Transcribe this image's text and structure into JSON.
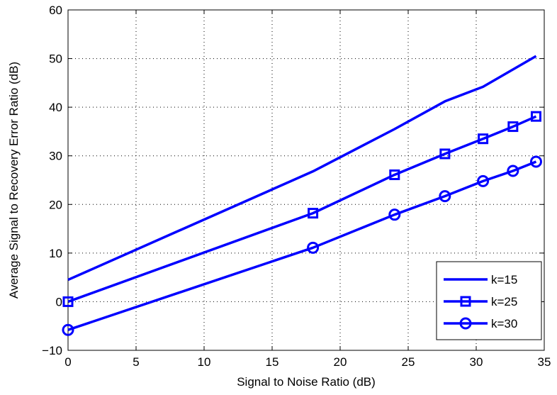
{
  "chart_data": {
    "type": "line",
    "xlabel": "Signal to Noise Ratio (dB)",
    "ylabel": "Average Signal to Recovery Error Ratio (dB)",
    "xlim": [
      0,
      35
    ],
    "ylim": [
      -10,
      60
    ],
    "xticks": [
      0,
      5,
      10,
      15,
      20,
      25,
      30,
      35
    ],
    "yticks": [
      -10,
      0,
      10,
      20,
      30,
      40,
      50,
      60
    ],
    "grid": true,
    "legend_position": "bottom-right",
    "series": [
      {
        "name": "k=15",
        "marker": "none",
        "color": "#0000ff",
        "x": [
          0,
          18,
          24,
          27.7,
          30.5,
          34.4
        ],
        "y": [
          4.5,
          26.8,
          35.5,
          41.2,
          44.2,
          50.5
        ]
      },
      {
        "name": "k=25",
        "marker": "square",
        "color": "#0000ff",
        "x": [
          0,
          18,
          24,
          27.7,
          30.5,
          32.7,
          34.4
        ],
        "y": [
          0,
          18.2,
          26.1,
          30.4,
          33.5,
          36.0,
          38.1
        ]
      },
      {
        "name": "k=30",
        "marker": "circle",
        "color": "#0000ff",
        "x": [
          0,
          18,
          24,
          27.7,
          30.5,
          32.7,
          34.4
        ],
        "y": [
          -5.8,
          11.1,
          17.9,
          21.7,
          24.8,
          26.9,
          28.8
        ]
      }
    ]
  }
}
